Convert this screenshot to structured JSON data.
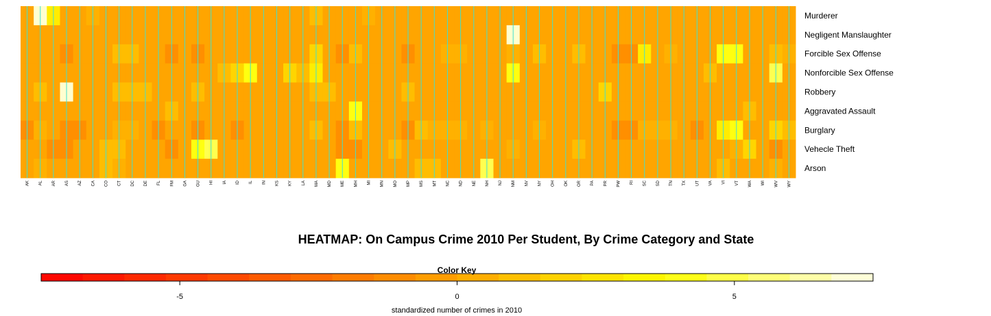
{
  "chart_data": {
    "type": "heatmap",
    "title": "HEATMAP: On Campus Crime 2010 Per Student, By Crime Category and State",
    "rows": [
      "Murderer",
      "Negligent Manslaughter",
      "Forcible Sex Offense",
      "Nonforcible Sex Offense",
      "Robbery",
      "Aggravated Assault",
      "Burglary",
      "Vehecle Theft",
      "Arson"
    ],
    "columns": [
      "AK",
      "AL",
      "AR",
      "AS",
      "AZ",
      "CA",
      "CO",
      "CT",
      "DC",
      "DE",
      "FL",
      "FM",
      "GA",
      "GU",
      "HI",
      "IA",
      "ID",
      "IL",
      "IN",
      "KS",
      "KY",
      "LA",
      "MA",
      "MD",
      "ME",
      "MH",
      "MI",
      "MN",
      "MO",
      "MP",
      "MS",
      "MT",
      "NC",
      "ND",
      "NE",
      "NH",
      "NJ",
      "NM",
      "NV",
      "NY",
      "OH",
      "OK",
      "OR",
      "PA",
      "PR",
      "PW",
      "RI",
      "SC",
      "SD",
      "TN",
      "TX",
      "UT",
      "VA",
      "VI",
      "VT",
      "WA",
      "WI",
      "WV",
      "WY"
    ],
    "values": [
      [
        0,
        7,
        3,
        0,
        0,
        0.5,
        0,
        0,
        0,
        0,
        0,
        0,
        0,
        0,
        0,
        0,
        0,
        0,
        0,
        0,
        0,
        0,
        1,
        0,
        0,
        0,
        0.5,
        0,
        0,
        0,
        0,
        0,
        0,
        0,
        0,
        0,
        0,
        0,
        0,
        0,
        0,
        0,
        0,
        0,
        0,
        0,
        0,
        0,
        0,
        0,
        0,
        0,
        0,
        0,
        0,
        0,
        0,
        0,
        0
      ],
      [
        0,
        0,
        0,
        0,
        0,
        0,
        0,
        0,
        0,
        0,
        0,
        0,
        0,
        0,
        0,
        0,
        0,
        0,
        0,
        0,
        0,
        0,
        0,
        0,
        0,
        0,
        0,
        0,
        0,
        0,
        0,
        0,
        0,
        0,
        0,
        0,
        0,
        7,
        0,
        0,
        0,
        0,
        0,
        0,
        0,
        0,
        0,
        0,
        0,
        0,
        0,
        0,
        0,
        0,
        0,
        0,
        0,
        0,
        0
      ],
      [
        0,
        0,
        0,
        -1,
        0,
        0,
        0,
        1,
        1,
        0,
        0,
        -1,
        0,
        -1,
        0,
        0,
        0,
        0,
        0,
        0,
        0,
        0,
        2,
        0,
        -1,
        1,
        0,
        0,
        0,
        -1,
        0,
        0,
        0.5,
        0.5,
        0,
        0,
        0,
        0.5,
        0,
        1,
        0,
        0,
        1,
        0,
        0,
        -1,
        -1,
        3,
        0,
        0.5,
        0,
        0,
        0,
        4,
        4,
        0,
        0,
        1,
        0.5
      ],
      [
        0,
        0,
        0,
        0,
        0,
        0,
        0,
        0,
        0,
        0,
        0,
        0,
        0,
        0,
        0,
        1,
        2,
        4,
        0,
        0,
        2,
        1,
        3,
        0,
        0,
        0,
        0,
        0,
        0,
        0,
        0,
        0,
        0,
        0,
        0,
        0,
        0,
        4,
        0,
        0,
        0,
        0,
        0,
        0,
        0,
        0,
        0,
        0,
        0,
        0,
        0,
        0,
        1,
        0,
        0,
        0,
        0,
        5,
        0
      ],
      [
        0,
        1,
        0,
        7,
        0,
        0,
        0,
        1,
        1,
        1,
        0,
        0,
        0,
        1,
        0,
        0,
        0,
        0,
        0,
        0,
        0,
        0,
        1,
        1,
        0,
        0,
        0,
        0,
        0,
        1,
        0,
        0,
        0,
        0,
        0,
        0,
        0,
        0,
        0,
        0,
        0,
        0,
        0,
        0,
        2,
        0,
        0,
        0,
        0,
        0,
        0,
        0,
        0,
        0,
        0,
        0,
        0,
        0,
        0
      ],
      [
        0,
        0,
        0,
        0,
        0,
        0,
        0,
        0,
        0,
        0,
        0,
        1,
        0,
        0,
        0,
        0,
        0,
        0,
        0,
        0,
        0,
        0,
        0,
        0,
        0,
        4,
        0,
        0,
        0,
        0,
        0,
        0,
        0,
        0,
        0,
        0,
        0,
        0,
        0,
        0,
        0,
        0,
        0,
        0,
        0,
        0,
        0,
        0,
        0,
        0,
        0,
        0,
        0,
        0,
        0,
        1,
        0,
        0,
        0
      ],
      [
        -1,
        0.5,
        0,
        -1,
        -1,
        0,
        0,
        0.5,
        0.5,
        0,
        -1,
        0,
        0,
        -1,
        0,
        0,
        -1,
        0,
        0,
        0,
        0,
        0,
        1,
        0,
        -1,
        1,
        0,
        0,
        0,
        -1,
        1,
        0.5,
        0.5,
        0.5,
        0,
        0.5,
        0,
        0,
        0,
        0.5,
        0,
        0,
        0,
        0,
        0,
        -1,
        -1,
        0.5,
        0.5,
        0.5,
        0,
        -1,
        0,
        3,
        4,
        0,
        0,
        2,
        1
      ],
      [
        0,
        0,
        -1,
        -1,
        0,
        0,
        1,
        1,
        0,
        0,
        0,
        -1,
        0,
        4,
        5,
        0,
        0,
        0,
        0,
        0,
        0,
        0,
        0,
        0,
        -1,
        -1,
        0,
        0,
        1,
        0,
        0,
        0,
        0,
        0,
        0,
        0,
        0,
        0.5,
        0,
        0,
        0,
        0,
        1,
        0,
        0,
        0,
        0,
        0,
        0,
        0,
        0,
        0,
        0,
        0,
        0.5,
        2,
        0,
        -1,
        0
      ],
      [
        0,
        0.5,
        0,
        0,
        0,
        0,
        1,
        0.5,
        0,
        0,
        0,
        0,
        0,
        0,
        0,
        0,
        0,
        0,
        0,
        0,
        0,
        0,
        0,
        0,
        4,
        0,
        0,
        0,
        0,
        0,
        1,
        1,
        0,
        0,
        0,
        5,
        0,
        0,
        0,
        0,
        0,
        0,
        0,
        0,
        0,
        0,
        0,
        0,
        0,
        0,
        0,
        0,
        0,
        1,
        0,
        0,
        0,
        0.5,
        0
      ]
    ],
    "color_key": {
      "title": "Color Key",
      "xlabel": "standardized number of crimes in 2010",
      "range": [
        -7.5,
        7.5
      ],
      "ticks": [
        -5,
        0,
        5
      ],
      "colors": [
        "#ff0000",
        "#ffa500",
        "#ffff00",
        "#fffff0"
      ]
    },
    "grid_line_color": "#40e0d0",
    "legend_position": "bottom"
  }
}
